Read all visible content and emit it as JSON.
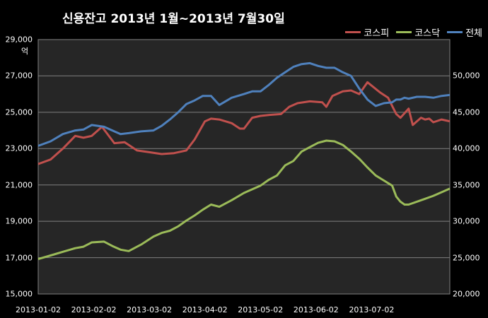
{
  "chart_data": {
    "type": "line",
    "title": "신용잔고 2013년 1월~2013년 7월30일",
    "left_axis_unit": "억",
    "left_axis": {
      "ylim": [
        15000,
        29000
      ],
      "ticks": [
        "15,000",
        "17,000",
        "19,000",
        "21,000",
        "23,000",
        "25,000",
        "27,000",
        "29,000"
      ]
    },
    "right_axis": {
      "ylim": [
        20000,
        55000
      ],
      "ticks": [
        "20,000",
        "25,000",
        "30,000",
        "35,000",
        "40,000",
        "45,000",
        "50,000"
      ]
    },
    "x_tick_labels": [
      "2013-01-02",
      "2013-02-02",
      "2013-03-02",
      "2013-04-02",
      "2013-05-02",
      "2013-06-02",
      "2013-07-02"
    ],
    "xlim": [
      0,
      1
    ],
    "grid": true,
    "legend_position": "top-right",
    "colors": {
      "kospi": "#c0504d",
      "kosdaq": "#9bbb59",
      "total": "#4f81bd",
      "background": "#262626"
    },
    "series": [
      {
        "name": "코스피",
        "axis": "left",
        "color": "#c0504d",
        "x": [
          0.0,
          0.03,
          0.06,
          0.09,
          0.11,
          0.13,
          0.155,
          0.165,
          0.185,
          0.21,
          0.24,
          0.27,
          0.3,
          0.33,
          0.36,
          0.38,
          0.4,
          0.405,
          0.42,
          0.44,
          0.47,
          0.49,
          0.5,
          0.52,
          0.54,
          0.56,
          0.59,
          0.61,
          0.63,
          0.66,
          0.69,
          0.7,
          0.715,
          0.74,
          0.76,
          0.78,
          0.8,
          0.83,
          0.85,
          0.87,
          0.88,
          0.9,
          0.91,
          0.92,
          0.93,
          0.94,
          0.95,
          0.96,
          0.98,
          1.0
        ],
        "y": [
          22150,
          22400,
          23000,
          23700,
          23600,
          23700,
          24200,
          23900,
          23300,
          23350,
          22900,
          22800,
          22700,
          22750,
          22900,
          23500,
          24300,
          24500,
          24650,
          24600,
          24400,
          24100,
          24100,
          24700,
          24800,
          24850,
          24900,
          25300,
          25500,
          25600,
          25550,
          25300,
          25900,
          26150,
          26200,
          26000,
          26650,
          26100,
          25800,
          24900,
          24700,
          25200,
          24300,
          24500,
          24700,
          24600,
          24650,
          24450,
          24600,
          24500
        ]
      },
      {
        "name": "코스닥",
        "axis": "right",
        "color": "#9bbb59",
        "x": [
          0.0,
          0.03,
          0.06,
          0.09,
          0.11,
          0.13,
          0.16,
          0.18,
          0.2,
          0.22,
          0.25,
          0.28,
          0.3,
          0.32,
          0.34,
          0.36,
          0.38,
          0.4,
          0.42,
          0.44,
          0.47,
          0.5,
          0.52,
          0.54,
          0.56,
          0.58,
          0.6,
          0.62,
          0.64,
          0.66,
          0.68,
          0.7,
          0.72,
          0.74,
          0.76,
          0.78,
          0.8,
          0.82,
          0.84,
          0.86,
          0.87,
          0.88,
          0.89,
          0.9,
          0.92,
          0.94,
          0.96,
          0.98,
          1.0
        ],
        "y": [
          24800,
          25300,
          25800,
          26300,
          26500,
          27100,
          27200,
          26600,
          26100,
          25900,
          26800,
          27900,
          28400,
          28700,
          29300,
          30100,
          30800,
          31600,
          32300,
          32000,
          32900,
          33900,
          34400,
          34900,
          35700,
          36300,
          37700,
          38300,
          39600,
          40200,
          40800,
          41100,
          41000,
          40500,
          39600,
          38600,
          37400,
          36300,
          35600,
          34900,
          33400,
          32700,
          32300,
          32300,
          32700,
          33100,
          33500,
          34000,
          34500
        ]
      },
      {
        "name": "전체",
        "axis": "left",
        "color": "#4f81bd",
        "x": [
          0.0,
          0.03,
          0.06,
          0.09,
          0.11,
          0.13,
          0.16,
          0.18,
          0.2,
          0.22,
          0.25,
          0.28,
          0.3,
          0.32,
          0.34,
          0.36,
          0.38,
          0.4,
          0.42,
          0.44,
          0.47,
          0.5,
          0.52,
          0.54,
          0.56,
          0.58,
          0.6,
          0.62,
          0.64,
          0.66,
          0.68,
          0.7,
          0.72,
          0.74,
          0.76,
          0.78,
          0.8,
          0.82,
          0.84,
          0.86,
          0.87,
          0.88,
          0.89,
          0.9,
          0.92,
          0.94,
          0.96,
          0.98,
          1.0
        ],
        "y": [
          23150,
          23400,
          23800,
          24000,
          24050,
          24300,
          24200,
          24000,
          23800,
          23850,
          23950,
          24000,
          24250,
          24600,
          25000,
          25450,
          25650,
          25900,
          25900,
          25400,
          25800,
          26000,
          26150,
          26150,
          26500,
          26900,
          27200,
          27500,
          27650,
          27700,
          27550,
          27450,
          27450,
          27200,
          27000,
          26300,
          25700,
          25350,
          25500,
          25550,
          25700,
          25700,
          25800,
          25750,
          25850,
          25850,
          25800,
          25900,
          25950
        ]
      }
    ]
  }
}
